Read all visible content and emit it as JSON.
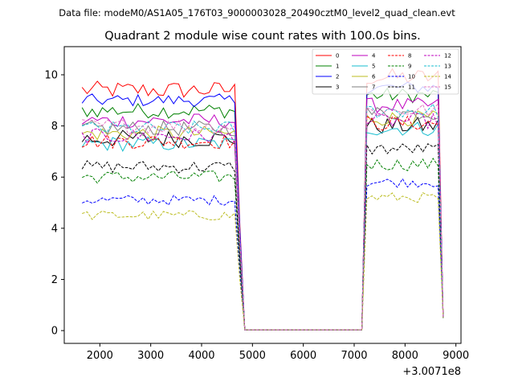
{
  "header": "Data file: modeM0/AS1A05_176T03_9000003028_20490cztM0_level2_quad_clean.evt",
  "chart_data": {
    "type": "line",
    "title": "Quadrant 2 module wise count rates with 100.0s bins.",
    "xlabel": "",
    "ylabel": "",
    "x_offset_label": "+3.0071e8",
    "xlim": [
      1300,
      9100
    ],
    "ylim": [
      -0.5,
      11.1
    ],
    "x_ticks": [
      2000,
      3000,
      4000,
      5000,
      6000,
      7000,
      8000,
      9000
    ],
    "x_tick_labels": [
      "2000",
      "3000",
      "4000",
      "5000",
      "6000",
      "7000",
      "8000",
      "9000"
    ],
    "y_ticks": [
      0,
      2,
      4,
      6,
      8,
      10
    ],
    "y_tick_labels": [
      "0",
      "2",
      "4",
      "6",
      "8",
      "10"
    ],
    "grid": false,
    "legend_position": "top-right",
    "legend_columns": 4,
    "bin_size_s": 100,
    "segments": [
      {
        "start": 1650,
        "end": 4650
      },
      {
        "start": 7250,
        "end": 8650
      }
    ],
    "gap_points": [
      4750,
      4850,
      7150,
      8750
    ],
    "series": [
      {
        "name": "0",
        "color": "#ff0000",
        "style": "solid",
        "level1": 9.4,
        "level2": 9.9,
        "amp": 0.35
      },
      {
        "name": "1",
        "color": "#008000",
        "style": "solid",
        "level1": 8.6,
        "level2": 9.2,
        "amp": 0.3
      },
      {
        "name": "2",
        "color": "#0000ff",
        "style": "solid",
        "level1": 9.0,
        "level2": 9.5,
        "amp": 0.25
      },
      {
        "name": "3",
        "color": "#000000",
        "style": "solid",
        "level1": 7.5,
        "level2": 8.0,
        "amp": 0.35
      },
      {
        "name": "4",
        "color": "#bf00bf",
        "style": "solid",
        "level1": 8.2,
        "level2": 8.8,
        "amp": 0.3
      },
      {
        "name": "5",
        "color": "#17becf",
        "style": "solid",
        "level1": 7.3,
        "level2": 7.9,
        "amp": 0.3
      },
      {
        "name": "6",
        "color": "#bcbd22",
        "style": "solid",
        "level1": 7.7,
        "level2": 8.3,
        "amp": 0.3
      },
      {
        "name": "7",
        "color": "#7f7f7f",
        "style": "solid",
        "level1": 7.9,
        "level2": 8.5,
        "amp": 0.3
      },
      {
        "name": "8",
        "color": "#ff0000",
        "style": "dashed",
        "level1": 7.4,
        "level2": 8.1,
        "amp": 0.3
      },
      {
        "name": "9",
        "color": "#008000",
        "style": "dashed",
        "level1": 6.0,
        "level2": 6.5,
        "amp": 0.25
      },
      {
        "name": "10",
        "color": "#0000ff",
        "style": "dashed",
        "level1": 5.1,
        "level2": 5.8,
        "amp": 0.2
      },
      {
        "name": "11",
        "color": "#000000",
        "style": "dashed",
        "level1": 6.4,
        "level2": 7.1,
        "amp": 0.25
      },
      {
        "name": "12",
        "color": "#bf00bf",
        "style": "dashed",
        "level1": 7.6,
        "level2": 8.2,
        "amp": 0.3
      },
      {
        "name": "13",
        "color": "#17becf",
        "style": "dashed",
        "level1": 7.9,
        "level2": 8.6,
        "amp": 0.3
      },
      {
        "name": "14",
        "color": "#bcbd22",
        "style": "dashed",
        "level1": 4.5,
        "level2": 5.2,
        "amp": 0.2
      },
      {
        "name": "15",
        "color": "#e377c2",
        "style": "dashed",
        "level1": 8.0,
        "level2": 8.6,
        "amp": 0.3
      }
    ]
  }
}
